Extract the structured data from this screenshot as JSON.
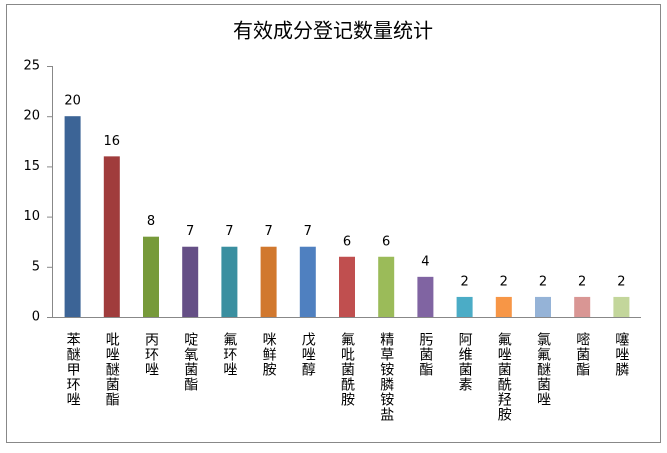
{
  "chart_data": {
    "type": "bar",
    "title": "有效成分登记数量统计",
    "categories": [
      "苯醚甲环唑",
      "吡唑醚菌酯",
      "丙环唑",
      "啶氧菌酯",
      "氟环唑",
      "咪鲜胺",
      "戊唑醇",
      "氟吡菌酰胺",
      "精草铵膦铵盐",
      "肟菌酯",
      "阿维菌素",
      "氟唑菌酰羟胺",
      "氯氟醚菌唑",
      "嘧菌酯",
      "噻唑膦"
    ],
    "values": [
      20,
      16,
      8,
      7,
      7,
      7,
      7,
      6,
      6,
      4,
      2,
      2,
      2,
      2,
      2
    ],
    "colors": [
      "#3c6496",
      "#a03c3c",
      "#779a3a",
      "#654f86",
      "#3a8fa0",
      "#d1782e",
      "#4f80c0",
      "#c04f4f",
      "#9bbb59",
      "#8064a2",
      "#4bacc6",
      "#f79646",
      "#95b3d7",
      "#d99694",
      "#c3d69b"
    ],
    "ylim": [
      0,
      25
    ],
    "yticks": [
      0,
      5,
      10,
      15,
      20,
      25
    ],
    "grid": false
  }
}
